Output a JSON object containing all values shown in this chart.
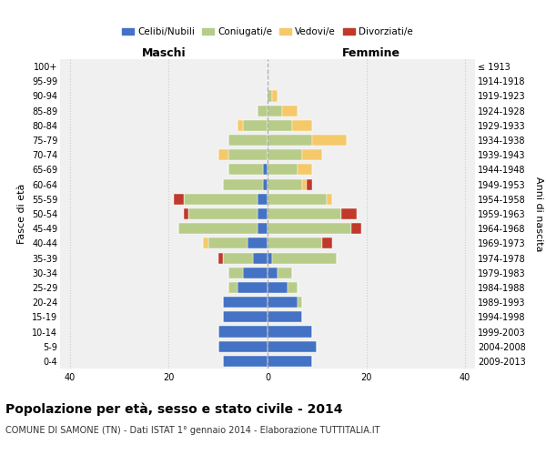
{
  "age_groups": [
    "100+",
    "95-99",
    "90-94",
    "85-89",
    "80-84",
    "75-79",
    "70-74",
    "65-69",
    "60-64",
    "55-59",
    "50-54",
    "45-49",
    "40-44",
    "35-39",
    "30-34",
    "25-29",
    "20-24",
    "15-19",
    "10-14",
    "5-9",
    "0-4"
  ],
  "birth_years": [
    "≤ 1913",
    "1914-1918",
    "1919-1923",
    "1924-1928",
    "1929-1933",
    "1934-1938",
    "1939-1943",
    "1944-1948",
    "1949-1953",
    "1954-1958",
    "1959-1963",
    "1964-1968",
    "1969-1973",
    "1974-1978",
    "1979-1983",
    "1984-1988",
    "1989-1993",
    "1994-1998",
    "1999-2003",
    "2004-2008",
    "2009-2013"
  ],
  "maschi": {
    "celibi": [
      0,
      0,
      0,
      0,
      0,
      0,
      0,
      1,
      1,
      2,
      2,
      2,
      4,
      3,
      5,
      6,
      9,
      9,
      10,
      10,
      9
    ],
    "coniugati": [
      0,
      0,
      0,
      2,
      5,
      8,
      8,
      7,
      8,
      15,
      14,
      16,
      8,
      6,
      3,
      2,
      0,
      0,
      0,
      0,
      0
    ],
    "vedovi": [
      0,
      0,
      0,
      0,
      1,
      0,
      2,
      0,
      0,
      0,
      0,
      0,
      1,
      0,
      0,
      0,
      0,
      0,
      0,
      0,
      0
    ],
    "divorziati": [
      0,
      0,
      0,
      0,
      0,
      0,
      0,
      0,
      0,
      2,
      1,
      0,
      0,
      1,
      0,
      0,
      0,
      0,
      0,
      0,
      0
    ]
  },
  "femmine": {
    "nubili": [
      0,
      0,
      0,
      0,
      0,
      0,
      0,
      0,
      0,
      0,
      0,
      0,
      0,
      1,
      2,
      4,
      6,
      7,
      9,
      10,
      9
    ],
    "coniugate": [
      0,
      0,
      1,
      3,
      5,
      9,
      7,
      6,
      7,
      12,
      15,
      17,
      11,
      13,
      3,
      2,
      1,
      0,
      0,
      0,
      0
    ],
    "vedove": [
      0,
      0,
      1,
      3,
      4,
      7,
      4,
      3,
      1,
      1,
      0,
      0,
      0,
      0,
      0,
      0,
      0,
      0,
      0,
      0,
      0
    ],
    "divorziate": [
      0,
      0,
      0,
      0,
      0,
      0,
      0,
      0,
      1,
      0,
      3,
      2,
      2,
      0,
      0,
      0,
      0,
      0,
      0,
      0,
      0
    ]
  },
  "colors": {
    "celibi_nubili": "#4472c4",
    "coniugati_e": "#b8cc8a",
    "vedovi_e": "#f5c96a",
    "divorziati_e": "#c0392b"
  },
  "xlim": 42,
  "title_main": "Popolazione per età, sesso e stato civile - 2014",
  "title_sub": "COMUNE DI SAMONE (TN) - Dati ISTAT 1° gennaio 2014 - Elaborazione TUTTITALIA.IT",
  "ylabel": "Fasce di età",
  "ylabel_right": "Anni di nascita",
  "label_maschi": "Maschi",
  "label_femmine": "Femmine",
  "legend_labels": [
    "Celibi/Nubili",
    "Coniugati/e",
    "Vedovi/e",
    "Divorziati/e"
  ],
  "bg_color": "#f0f0f0",
  "grid_color": "#cccccc"
}
